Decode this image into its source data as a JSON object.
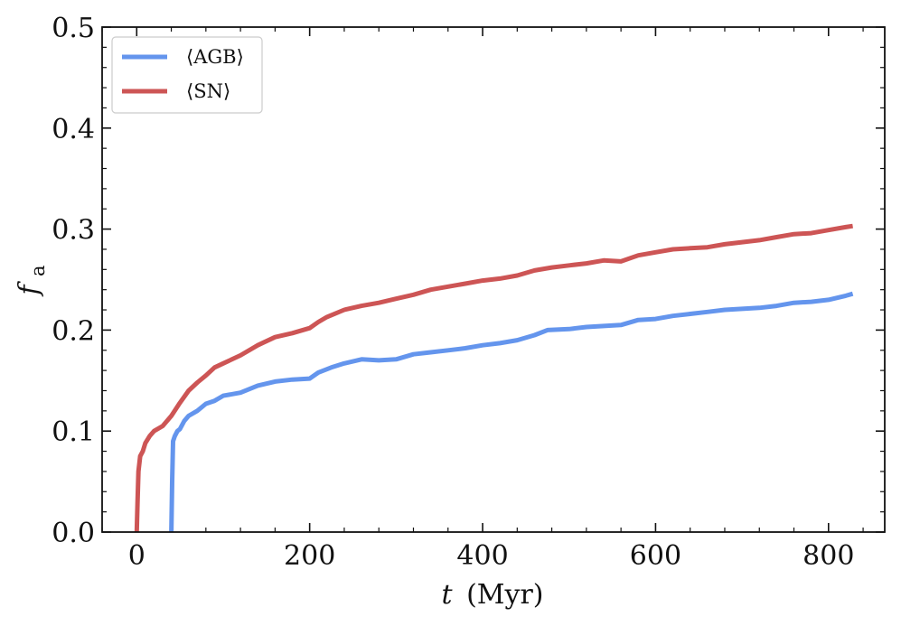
{
  "chart_data": {
    "type": "line",
    "title": "",
    "xlabel_var": "t",
    "xlabel_unit": "(Myr)",
    "ylabel_base": "f",
    "ylabel_sub": "a",
    "xlim": [
      -40,
      865
    ],
    "ylim": [
      0,
      0.5
    ],
    "xticks": [
      0,
      200,
      400,
      600,
      800
    ],
    "xtick_labels": [
      "0",
      "200",
      "400",
      "600",
      "800"
    ],
    "yticks": [
      0.0,
      0.1,
      0.2,
      0.3,
      0.4,
      0.5
    ],
    "ytick_labels": [
      "0.0",
      "0.1",
      "0.2",
      "0.3",
      "0.4",
      "0.5"
    ],
    "legend_position": "top-left",
    "grid": false,
    "series": [
      {
        "name": "⟨AGB⟩",
        "color": "#6495ED",
        "x": [
          40,
          41,
          42,
          44,
          47,
          50,
          55,
          60,
          70,
          80,
          90,
          100,
          120,
          140,
          160,
          180,
          200,
          210,
          225,
          240,
          260,
          280,
          300,
          320,
          340,
          360,
          380,
          400,
          420,
          440,
          460,
          475,
          500,
          520,
          540,
          560,
          580,
          600,
          620,
          640,
          660,
          680,
          700,
          720,
          740,
          760,
          780,
          800,
          820,
          828
        ],
        "values": [
          0.0,
          0.05,
          0.09,
          0.095,
          0.1,
          0.102,
          0.11,
          0.115,
          0.12,
          0.127,
          0.13,
          0.135,
          0.138,
          0.145,
          0.149,
          0.151,
          0.152,
          0.158,
          0.163,
          0.167,
          0.171,
          0.17,
          0.171,
          0.176,
          0.178,
          0.18,
          0.182,
          0.185,
          0.187,
          0.19,
          0.195,
          0.2,
          0.201,
          0.203,
          0.204,
          0.205,
          0.21,
          0.211,
          0.214,
          0.216,
          0.218,
          0.22,
          0.221,
          0.222,
          0.224,
          0.227,
          0.228,
          0.23,
          0.234,
          0.236
        ]
      },
      {
        "name": "⟨SN⟩",
        "color": "#CD5555",
        "x": [
          0,
          1,
          2,
          4,
          7,
          10,
          15,
          20,
          30,
          40,
          50,
          60,
          70,
          80,
          90,
          100,
          120,
          140,
          160,
          180,
          200,
          210,
          220,
          240,
          260,
          280,
          300,
          320,
          340,
          360,
          380,
          400,
          420,
          440,
          460,
          480,
          500,
          520,
          540,
          560,
          580,
          600,
          620,
          640,
          660,
          680,
          700,
          720,
          740,
          760,
          780,
          800,
          820,
          828
        ],
        "values": [
          0.0,
          0.03,
          0.06,
          0.075,
          0.08,
          0.088,
          0.095,
          0.1,
          0.105,
          0.115,
          0.128,
          0.14,
          0.148,
          0.155,
          0.163,
          0.167,
          0.175,
          0.185,
          0.193,
          0.197,
          0.202,
          0.208,
          0.213,
          0.22,
          0.224,
          0.227,
          0.231,
          0.235,
          0.24,
          0.243,
          0.246,
          0.249,
          0.251,
          0.254,
          0.259,
          0.262,
          0.264,
          0.266,
          0.269,
          0.268,
          0.274,
          0.277,
          0.28,
          0.281,
          0.282,
          0.285,
          0.287,
          0.289,
          0.292,
          0.295,
          0.296,
          0.299,
          0.302,
          0.303
        ]
      }
    ]
  }
}
